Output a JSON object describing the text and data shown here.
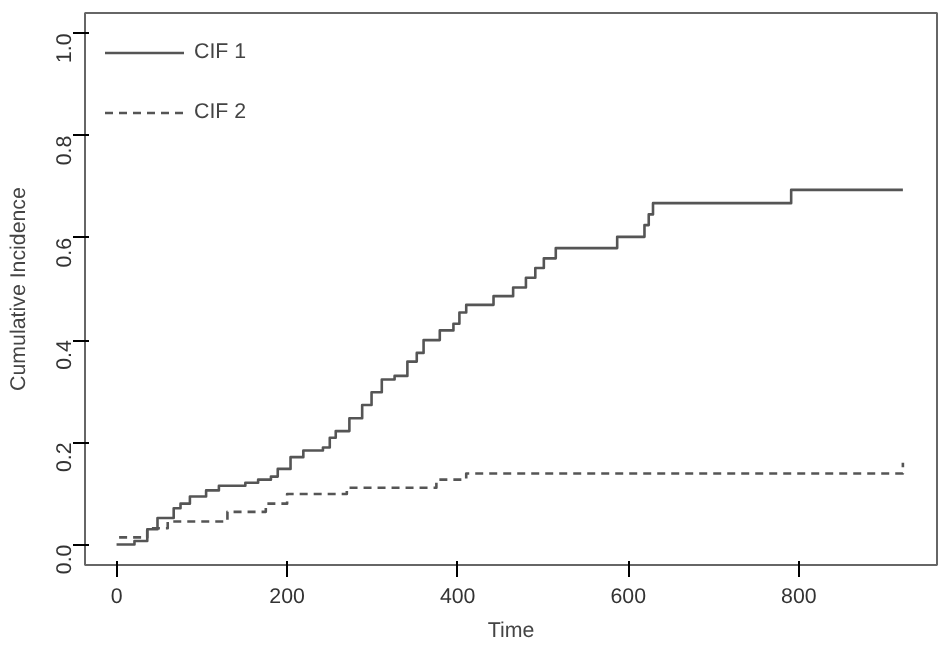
{
  "chart_data": {
    "type": "step",
    "xlabel": "Time",
    "ylabel": "Cumulative Incidence",
    "xlim": [
      -37,
      962
    ],
    "ylim": [
      -0.04,
      1.04
    ],
    "xticks": [
      0,
      200,
      400,
      600,
      800
    ],
    "yticks": [
      {
        "value": 0,
        "label": "0.0"
      },
      0.2,
      0.4,
      0.6,
      0.8,
      {
        "value": 1,
        "label": "1.0"
      }
    ],
    "grid": false,
    "legend": "top left",
    "series": [
      {
        "name": "CIF 1",
        "color": "#555555",
        "line_style": "solid",
        "x": [
          0,
          21,
          36,
          48,
          67,
          75,
          86,
          105,
          120,
          151,
          166,
          181,
          189,
          204,
          219,
          242,
          250,
          257,
          273,
          288,
          299,
          311,
          326,
          341,
          352,
          360,
          379,
          395,
          402,
          410,
          442,
          465,
          480,
          491,
          501,
          515,
          587,
          619,
          624,
          629,
          791,
          922
        ],
        "values": [
          0,
          0.007,
          0.03,
          0.052,
          0.071,
          0.08,
          0.094,
          0.106,
          0.115,
          0.121,
          0.127,
          0.133,
          0.148,
          0.171,
          0.184,
          0.19,
          0.209,
          0.222,
          0.247,
          0.273,
          0.298,
          0.323,
          0.33,
          0.358,
          0.375,
          0.4,
          0.419,
          0.432,
          0.454,
          0.469,
          0.486,
          0.503,
          0.522,
          0.541,
          0.56,
          0.58,
          0.602,
          0.625,
          0.646,
          0.668,
          0.694,
          0.694
        ]
      },
      {
        "name": "CIF 2",
        "color": "#555555",
        "line_style": "dashed",
        "x": [
          3,
          36,
          60,
          130,
          175,
          200,
          270,
          375,
          410,
          922
        ],
        "values": [
          0.014,
          0.032,
          0.045,
          0.064,
          0.08,
          0.099,
          0.111,
          0.127,
          0.139,
          0.16
        ]
      }
    ]
  }
}
